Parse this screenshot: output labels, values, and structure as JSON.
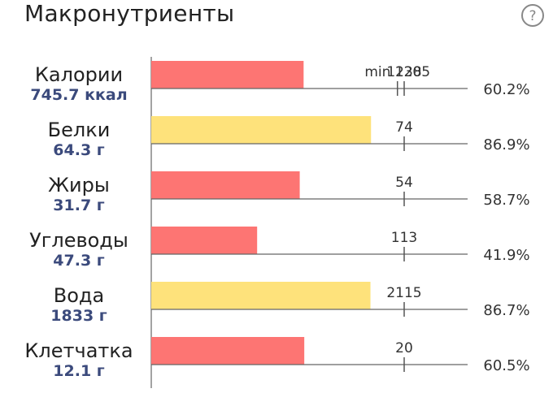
{
  "header": {
    "title": "Макронутриенты",
    "help_icon": "question-circle-icon"
  },
  "colors": {
    "bar_red": "#fd7573",
    "bar_yellow": "#fee27b",
    "amount_text": "#3b4a7c",
    "axis": "#666666"
  },
  "chart_data": {
    "type": "bar",
    "orientation": "horizontal",
    "title": "Макронутриенты",
    "rows": [
      {
        "label": "Калории",
        "amount": "745.7 ккал",
        "value": 745.7,
        "min_label": "min 1205",
        "min": 1205,
        "target_label": "1238",
        "target": 1238,
        "percent": "60.2%",
        "color": "red"
      },
      {
        "label": "Белки",
        "amount": "64.3 г",
        "value": 64.3,
        "target_label": "74",
        "target": 74,
        "percent": "86.9%",
        "color": "yellow"
      },
      {
        "label": "Жиры",
        "amount": "31.7 г",
        "value": 31.7,
        "target_label": "54",
        "target": 54,
        "percent": "58.7%",
        "color": "red"
      },
      {
        "label": "Углеводы",
        "amount": "47.3 г",
        "value": 47.3,
        "target_label": "113",
        "target": 113,
        "percent": "41.9%",
        "color": "red"
      },
      {
        "label": "Вода",
        "amount": "1833 г",
        "value": 1833,
        "target_label": "2115",
        "target": 2115,
        "percent": "86.7%",
        "color": "yellow"
      },
      {
        "label": "Клетчатка",
        "amount": "12.1 г",
        "value": 12.1,
        "target_label": "20",
        "target": 20,
        "percent": "60.5%",
        "color": "red"
      }
    ]
  }
}
